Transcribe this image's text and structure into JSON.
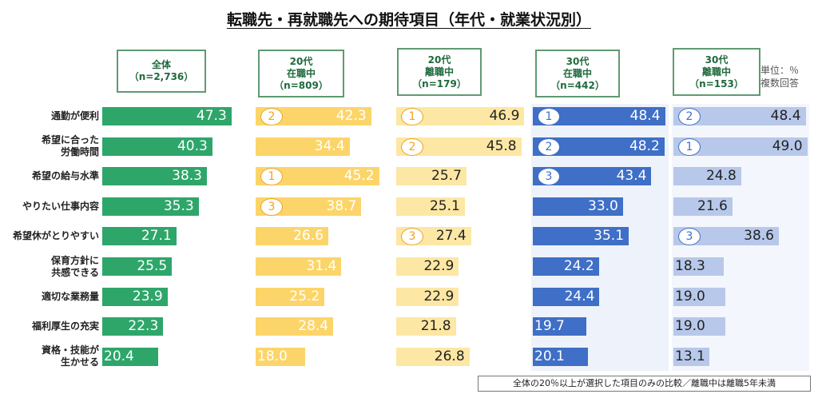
{
  "chart_data": {
    "type": "bar",
    "title": "転職先・再就職先への期待項目（年代・就業状況別）",
    "unit_note": [
      "単位：％",
      "複数回答"
    ],
    "footnote": "全体の20％以上が選択した項目のみの比較／離職中は離職5年未満",
    "categories": [
      [
        "通勤が便利"
      ],
      [
        "希望に合った",
        "労働時間"
      ],
      [
        "希望の給与水準"
      ],
      [
        "やりたい仕事内容"
      ],
      [
        "希望休がとりやすい"
      ],
      [
        "保育方針に",
        "共感できる"
      ],
      [
        "適切な業務量"
      ],
      [
        "福利厚生の充実"
      ],
      [
        "資格・技能が",
        "生かせる"
      ]
    ],
    "series": [
      {
        "name_lines": [
          "全体",
          "（n=2,736）"
        ],
        "values": [
          47.3,
          40.3,
          38.3,
          35.3,
          27.1,
          25.5,
          23.9,
          22.3,
          20.4
        ],
        "ranks": [
          null,
          null,
          null,
          null,
          null,
          null,
          null,
          null,
          null
        ],
        "color": "#2ea66a",
        "value_color": "#ffffff",
        "rank_color": "#2ea66a"
      },
      {
        "name_lines": [
          "20代",
          "在職中",
          "（n=809）"
        ],
        "values": [
          42.3,
          34.4,
          45.2,
          38.7,
          26.6,
          31.4,
          25.2,
          28.4,
          18.0
        ],
        "ranks": [
          "2",
          null,
          "1",
          "3",
          null,
          null,
          null,
          null,
          null
        ],
        "color": "#fcd56a",
        "value_color": "#ffffff",
        "rank_color": "#f0a31c"
      },
      {
        "name_lines": [
          "20代",
          "離職中",
          "（n=179）"
        ],
        "values": [
          46.9,
          45.8,
          25.7,
          25.1,
          27.4,
          22.9,
          22.9,
          21.8,
          26.8
        ],
        "ranks": [
          "1",
          "2",
          null,
          null,
          "3",
          null,
          null,
          null,
          null
        ],
        "color": "#fde7a4",
        "value_color": "#222222",
        "rank_color": "#f0a31c"
      },
      {
        "name_lines": [
          "30代",
          "在職中",
          "（n=442）"
        ],
        "values": [
          48.4,
          48.2,
          43.4,
          33.0,
          35.1,
          24.2,
          24.4,
          19.7,
          20.1
        ],
        "ranks": [
          "1",
          "2",
          "3",
          null,
          null,
          null,
          null,
          null,
          null
        ],
        "color": "#3f6fc6",
        "value_color": "#ffffff",
        "rank_color": "#3f6fc6"
      },
      {
        "name_lines": [
          "30代",
          "離職中",
          "（n=153）"
        ],
        "values": [
          48.4,
          49.0,
          24.8,
          21.6,
          38.6,
          18.3,
          19.0,
          19.0,
          13.1
        ],
        "ranks": [
          "2",
          "1",
          null,
          null,
          "3",
          null,
          null,
          null,
          null
        ],
        "color": "#b7c8ea",
        "value_color": "#222222",
        "rank_color": "#3f6fc6"
      }
    ]
  }
}
